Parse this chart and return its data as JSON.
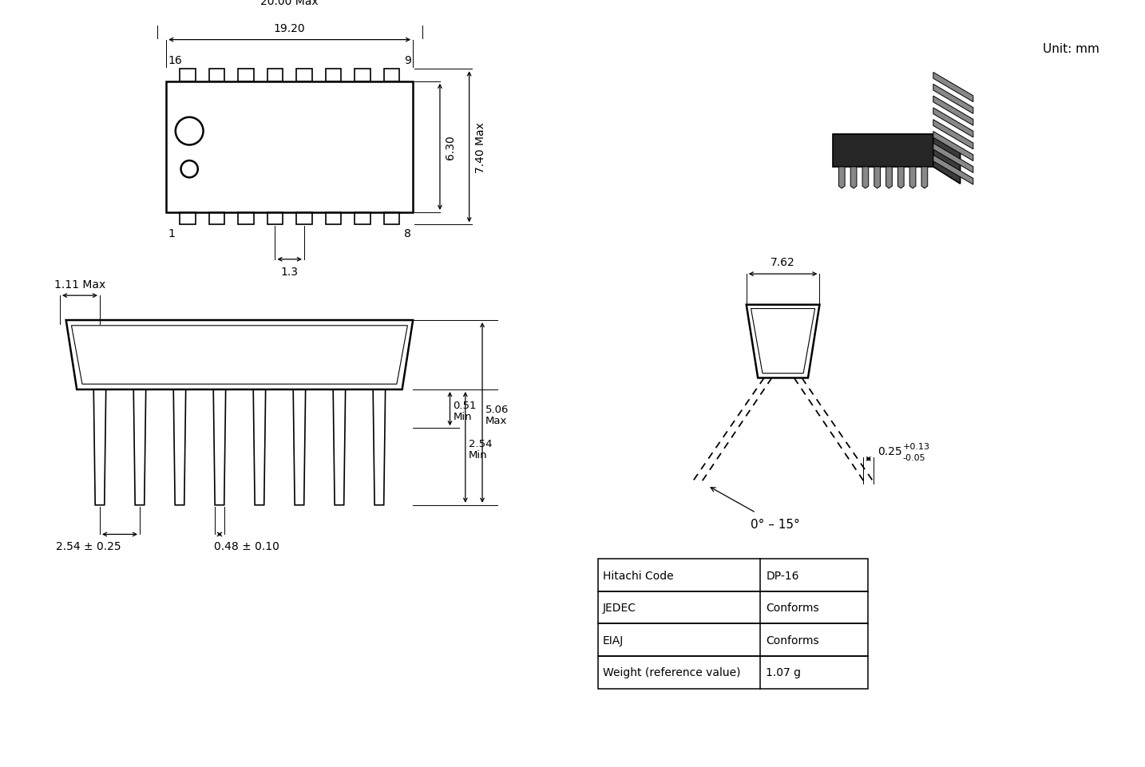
{
  "background_color": "#ffffff",
  "unit_label": "Unit: mm",
  "table_data": {
    "rows": [
      [
        "Hitachi Code",
        "DP-16"
      ],
      [
        "JEDEC",
        "Conforms"
      ],
      [
        "EIAJ",
        "Conforms"
      ],
      [
        "Weight (reference value)",
        "1.07 g"
      ]
    ]
  }
}
